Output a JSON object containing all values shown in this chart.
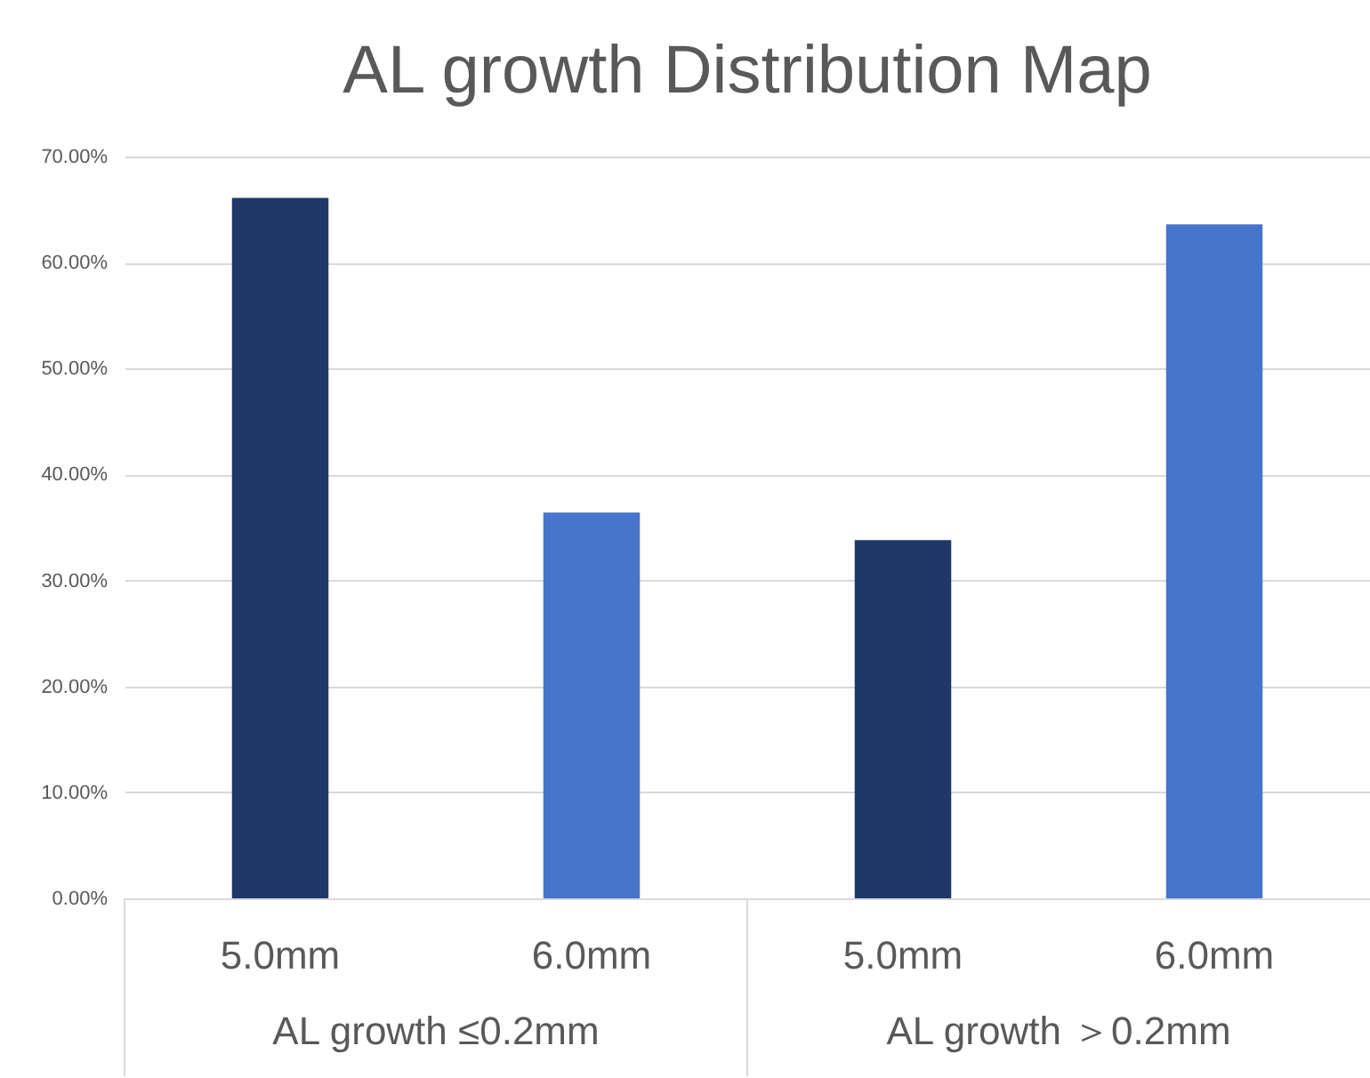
{
  "chart_data": {
    "type": "bar",
    "title": "AL growth Distribution Map",
    "categories": [
      "5.0mm",
      "6.0mm",
      "5.0mm",
      "6.0mm"
    ],
    "values": [
      66.1,
      36.4,
      33.8,
      63.6
    ],
    "colors": [
      "#1f3868",
      "#4874cb",
      "#1f3868",
      "#4874cb"
    ],
    "annotations": [
      "AL growth ≤0.2mm",
      "AL growth ＞0.2mm"
    ],
    "ylim": [
      0,
      70
    ],
    "yticks": [
      {
        "value": 0,
        "label": "0.00%"
      },
      {
        "value": 10,
        "label": "10.00%"
      },
      {
        "value": 20,
        "label": "20.00%"
      },
      {
        "value": 30,
        "label": "30.00%"
      },
      {
        "value": 40,
        "label": "40.00%"
      },
      {
        "value": 50,
        "label": "50.00%"
      },
      {
        "value": 60,
        "label": "60.00%"
      },
      {
        "value": 70,
        "label": "70.00%"
      }
    ],
    "grid": "y"
  }
}
